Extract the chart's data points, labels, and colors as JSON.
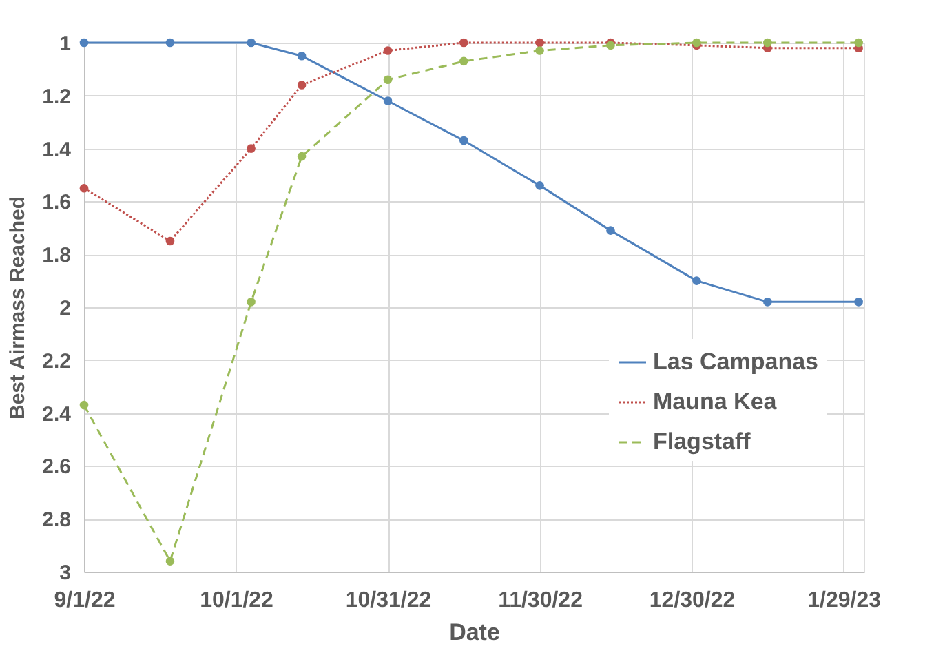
{
  "chart_data": {
    "type": "line",
    "xlabel": "Date",
    "ylabel": "Best Airmass Reached",
    "x": [
      "2022-09-01",
      "2022-09-18",
      "2022-10-04",
      "2022-10-14",
      "2022-10-31",
      "2022-11-15",
      "2022-11-30",
      "2022-12-14",
      "2022-12-31",
      "2023-01-14",
      "2023-02-01"
    ],
    "series": [
      {
        "name": "Las Campanas",
        "color": "#4f81bd",
        "line_style": "solid",
        "values": [
          1.0,
          1.0,
          1.0,
          1.05,
          1.22,
          1.37,
          1.54,
          1.71,
          1.9,
          1.98,
          1.98
        ]
      },
      {
        "name": "Mauna Kea",
        "color": "#c0504d",
        "line_style": "dotted",
        "values": [
          1.55,
          1.75,
          1.4,
          1.16,
          1.03,
          1.0,
          1.0,
          1.0,
          1.01,
          1.02,
          1.02
        ]
      },
      {
        "name": "Flagstaff",
        "color": "#9bbb59",
        "line_style": "dashed",
        "values": [
          2.37,
          2.96,
          1.98,
          1.43,
          1.14,
          1.07,
          1.03,
          1.01,
          1.0,
          1.0,
          1.0
        ]
      }
    ],
    "xlim": [
      "2022-09-01",
      "2023-02-02"
    ],
    "xticks": [
      {
        "value": "2022-09-01",
        "label": "9/1/22"
      },
      {
        "value": "2022-10-01",
        "label": "10/1/22"
      },
      {
        "value": "2022-10-31",
        "label": "10/31/22"
      },
      {
        "value": "2022-11-30",
        "label": "11/30/22"
      },
      {
        "value": "2022-12-30",
        "label": "12/30/22"
      },
      {
        "value": "2023-01-29",
        "label": "1/29/23"
      }
    ],
    "ylim": [
      3,
      1
    ],
    "yticks": [
      1,
      1.2,
      1.4,
      1.6,
      1.8,
      2,
      2.2,
      2.4,
      2.6,
      2.8,
      3
    ],
    "grid": true,
    "legend": "right",
    "marker": "circle"
  }
}
